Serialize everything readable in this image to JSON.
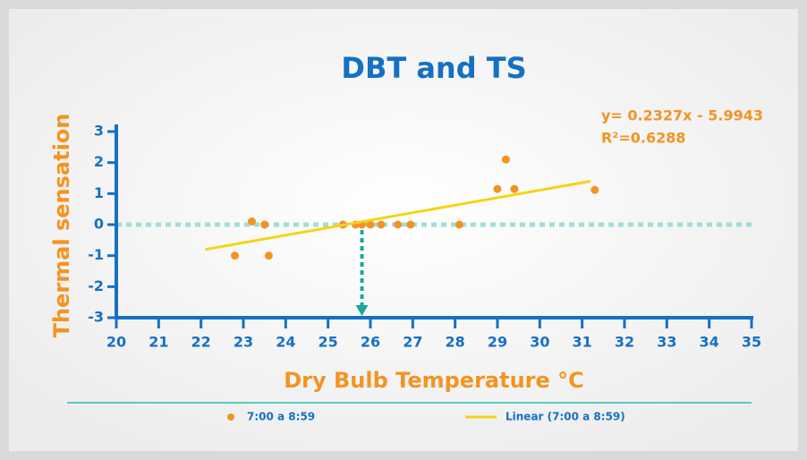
{
  "chart_data": {
    "type": "scatter",
    "title": "DBT and TS",
    "xlabel": "Dry Bulb Temperature °C",
    "ylabel": "Thermal sensation",
    "annotations": [
      "y= 0.2327x - 5.9943",
      "R²=0.6288"
    ],
    "xlim": [
      20,
      35
    ],
    "xticks": [
      20,
      21,
      22,
      23,
      24,
      25,
      26,
      27,
      28,
      29,
      30,
      31,
      32,
      33,
      34,
      35
    ],
    "ylim": [
      -3,
      3
    ],
    "yticks": [
      -3,
      -2,
      -1,
      0,
      1,
      2,
      3
    ],
    "reference_y": 0,
    "arrow_x": 25.8,
    "axis_color": "#1670c4",
    "reference_color": "#9edfd9",
    "arrow_color": "#17a99a",
    "legend": "bottom",
    "series": [
      {
        "name": "7:00 a 8:59",
        "color": "#f39422",
        "x": [
          22.8,
          23.2,
          23.5,
          23.6,
          25.35,
          25.65,
          25.8,
          26.0,
          26.25,
          26.65,
          26.95,
          28.1,
          29.0,
          29.2,
          29.4,
          31.3
        ],
        "values": [
          -1,
          0.1,
          0,
          -1,
          0,
          0,
          0,
          0,
          0,
          0,
          0,
          0,
          1.15,
          2.1,
          1.15,
          1.12
        ]
      },
      {
        "name": "Linear (7:00 a 8:59)",
        "color": "#f5d414",
        "kind": "line",
        "x": [
          22.1,
          31.2
        ],
        "values": [
          -0.8,
          1.4
        ]
      }
    ]
  }
}
